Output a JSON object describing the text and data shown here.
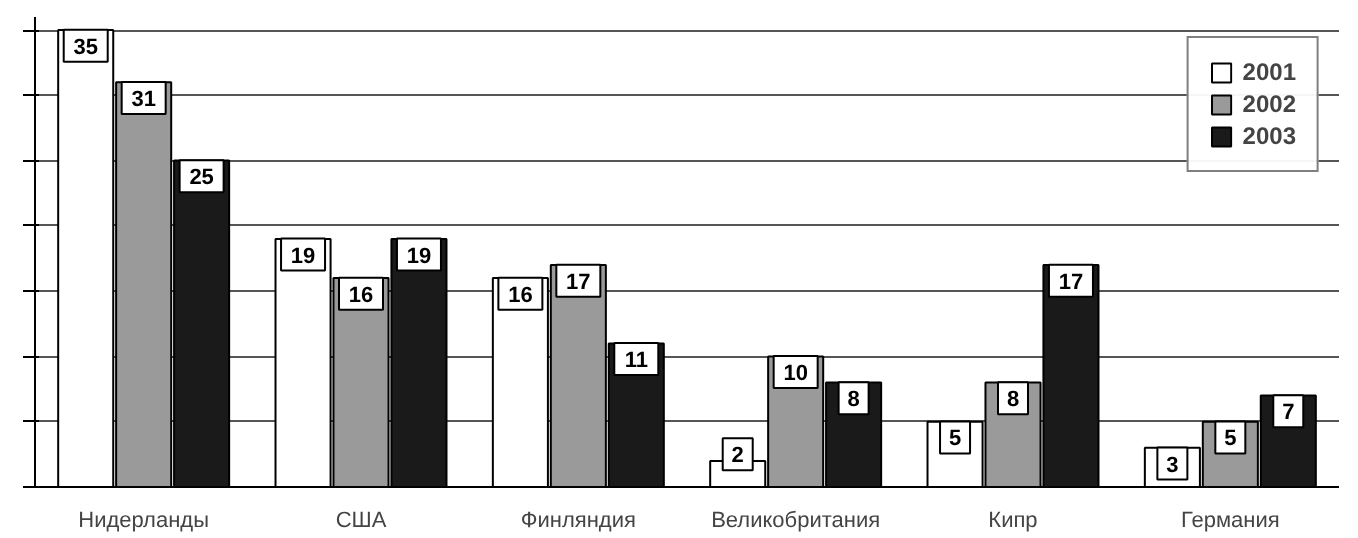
{
  "chart_data": {
    "type": "bar",
    "categories": [
      "Нидерланды",
      "США",
      "Финляндия",
      "Великобритания",
      "Кипр",
      "Германия"
    ],
    "series": [
      {
        "name": "2001",
        "color": "#ffffff",
        "values": [
          35,
          19,
          16,
          2,
          5,
          3
        ]
      },
      {
        "name": "2002",
        "color": "#9a9a9a",
        "values": [
          31,
          16,
          17,
          10,
          8,
          5
        ]
      },
      {
        "name": "2003",
        "color": "#1a1a1a",
        "values": [
          25,
          19,
          11,
          8,
          17,
          7
        ]
      }
    ],
    "ylim": [
      0,
      36
    ],
    "yticks": [
      {
        "value": 0,
        "label": null
      },
      {
        "value": 5,
        "label": null
      },
      {
        "value": 10,
        "label": null
      },
      {
        "value": 15,
        "label": null
      },
      {
        "value": 20,
        "label": null
      },
      {
        "value": 25,
        "label": null
      },
      {
        "value": 30,
        "label": null
      },
      {
        "value": 35,
        "label": null
      }
    ],
    "grid": "y",
    "legend": "top right",
    "data_labels": true
  }
}
